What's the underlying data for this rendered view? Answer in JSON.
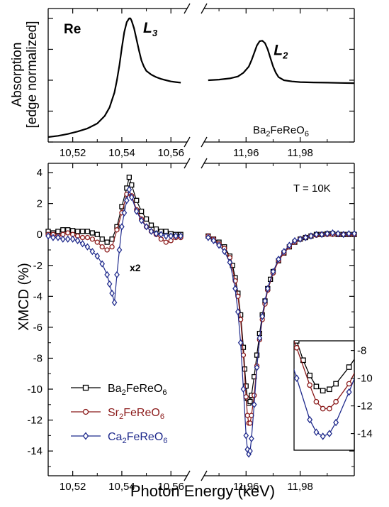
{
  "colors": {
    "ba": "#000000",
    "sr": "#8b1a1a",
    "ca": "#1f2a8c",
    "axis": "#000000"
  },
  "chart_data": [
    {
      "id": "absorption",
      "type": "line",
      "title": "",
      "ylabel_lines": [
        "Absorption",
        "[edge normalized]"
      ],
      "xlabel": "",
      "element_label": "Re",
      "edge_labels": [
        {
          "text": "L",
          "sub": "3",
          "x": 10.5435,
          "y": 1.0
        },
        {
          "text": "L",
          "sub": "2",
          "x": 11.9655,
          "y": 0.82
        }
      ],
      "sample_label": {
        "text": "Ba",
        "sub1": "2",
        "mid": "FeReO",
        "sub2": "6"
      },
      "axis_break": true,
      "x_segments": [
        {
          "xlim": [
            10.51,
            10.566
          ],
          "ticks": [
            10.52,
            10.54,
            10.56
          ],
          "tick_labels": [
            "10,52",
            "10,54",
            "10,56"
          ]
        },
        {
          "xlim": [
            11.945,
            12.0
          ],
          "ticks": [
            11.96,
            11.98
          ],
          "tick_labels": [
            "11,96",
            "11,98"
          ]
        }
      ],
      "ylim": [
        0.0,
        1.08
      ],
      "series": [
        {
          "segment": 0,
          "x": [
            10.51,
            10.514,
            10.518,
            10.522,
            10.526,
            10.53,
            10.533,
            10.535,
            10.537,
            10.538,
            10.539,
            10.54,
            10.541,
            10.542,
            10.543,
            10.5435,
            10.544,
            10.545,
            10.546,
            10.547,
            10.548,
            10.549,
            10.55,
            10.552,
            10.554,
            10.556,
            10.558,
            10.56,
            10.562,
            10.564
          ],
          "y": [
            0.04,
            0.05,
            0.065,
            0.085,
            0.11,
            0.15,
            0.21,
            0.28,
            0.4,
            0.5,
            0.62,
            0.76,
            0.89,
            0.97,
            1.0,
            1.0,
            0.98,
            0.92,
            0.83,
            0.74,
            0.66,
            0.61,
            0.575,
            0.545,
            0.525,
            0.51,
            0.5,
            0.49,
            0.485,
            0.48
          ]
        },
        {
          "segment": 1,
          "x": [
            11.946,
            11.95,
            11.954,
            11.957,
            11.959,
            11.961,
            11.962,
            11.963,
            11.964,
            11.965,
            11.966,
            11.967,
            11.968,
            11.969,
            11.97,
            11.971,
            11.972,
            11.974,
            11.977,
            11.98,
            11.985,
            11.99,
            11.995,
            12.0
          ],
          "y": [
            0.5,
            0.505,
            0.515,
            0.53,
            0.56,
            0.61,
            0.66,
            0.72,
            0.78,
            0.815,
            0.82,
            0.8,
            0.75,
            0.68,
            0.61,
            0.56,
            0.525,
            0.5,
            0.49,
            0.485,
            0.482,
            0.48,
            0.478,
            0.476
          ]
        }
      ]
    },
    {
      "id": "xmcd",
      "type": "line",
      "title": "",
      "ylabel": "XMCD  (%)",
      "xlabel": "Photon Energy  (keV)",
      "temperature_label": "T = 10K",
      "scale_annotation": "x2",
      "axis_break": true,
      "x_segments": [
        {
          "xlim": [
            10.51,
            10.566
          ],
          "ticks": [
            10.52,
            10.54,
            10.56
          ],
          "tick_labels": [
            "10,52",
            "10,54",
            "10,56"
          ]
        },
        {
          "xlim": [
            11.945,
            12.0
          ],
          "ticks": [
            11.96,
            11.98
          ],
          "tick_labels": [
            "11,96",
            "11,98"
          ]
        }
      ],
      "ylim": [
        -15.6,
        4.6
      ],
      "yticks": [
        4,
        2,
        0,
        -2,
        -4,
        -6,
        -8,
        -10,
        -12,
        -14
      ],
      "ytick_labels": [
        "4",
        "2",
        "0",
        "-2",
        "-4",
        "-6",
        "-8",
        "-10",
        "-12",
        "-14"
      ],
      "legend": {
        "placement": "bottom-left",
        "entries": [
          {
            "key": "ba",
            "marker": "square",
            "pre": "Ba",
            "s1": "2",
            "mid": "FeReO",
            "s2": "6"
          },
          {
            "key": "sr",
            "marker": "circle",
            "pre": "Sr",
            "s1": "2",
            "mid": "FeReO",
            "s2": "6"
          },
          {
            "key": "ca",
            "marker": "diamond",
            "pre": "Ca",
            "s1": "2",
            "mid": "FeReO",
            "s2": "6"
          }
        ]
      },
      "series": [
        {
          "key": "ba",
          "marker": "square",
          "segments": [
            {
              "x": [
                10.51,
                10.512,
                10.514,
                10.516,
                10.518,
                10.52,
                10.522,
                10.524,
                10.526,
                10.528,
                10.53,
                10.532,
                10.534,
                10.536,
                10.538,
                10.54,
                10.542,
                10.543,
                10.544,
                10.546,
                10.548,
                10.55,
                10.552,
                10.554,
                10.556,
                10.558,
                10.56,
                10.562,
                10.564
              ],
              "y": [
                0.2,
                0.1,
                0.2,
                0.3,
                0.3,
                0.25,
                0.2,
                0.2,
                0.2,
                0.1,
                0.0,
                -0.3,
                -0.5,
                -0.3,
                0.5,
                1.8,
                3.0,
                3.7,
                3.2,
                2.2,
                1.5,
                1.0,
                0.6,
                0.35,
                0.2,
                0.2,
                0.05,
                0.0,
                0.0
              ]
            },
            {
              "x": [
                11.946,
                11.948,
                11.95,
                11.952,
                11.954,
                11.955,
                11.956,
                11.957,
                11.958,
                11.959,
                11.9595,
                11.96,
                11.9605,
                11.961,
                11.9615,
                11.962,
                11.963,
                11.964,
                11.965,
                11.966,
                11.967,
                11.968,
                11.969,
                11.97,
                11.972,
                11.974,
                11.976,
                11.978,
                11.98,
                11.982,
                11.984,
                11.986,
                11.988,
                11.99,
                11.992,
                11.994,
                11.996,
                11.998,
                12.0
              ],
              "y": [
                -0.1,
                -0.3,
                -0.5,
                -0.8,
                -1.4,
                -2.0,
                -2.8,
                -3.8,
                -5.2,
                -7.3,
                -8.7,
                -9.8,
                -10.6,
                -10.9,
                -10.8,
                -10.4,
                -9.2,
                -7.8,
                -6.4,
                -5.2,
                -4.3,
                -3.5,
                -2.9,
                -2.4,
                -1.7,
                -1.2,
                -0.8,
                -0.5,
                -0.3,
                -0.2,
                -0.1,
                0.0,
                0.0,
                0.05,
                0.05,
                0.0,
                0.0,
                0.0,
                0.0
              ]
            }
          ]
        },
        {
          "key": "sr",
          "marker": "circle",
          "segments": [
            {
              "x": [
                10.51,
                10.512,
                10.514,
                10.516,
                10.518,
                10.52,
                10.522,
                10.524,
                10.526,
                10.528,
                10.53,
                10.532,
                10.534,
                10.536,
                10.538,
                10.54,
                10.542,
                10.544,
                10.546,
                10.548,
                10.55,
                10.552,
                10.554,
                10.556,
                10.558,
                10.56,
                10.562,
                10.564
              ],
              "y": [
                0.0,
                0.0,
                -0.1,
                0.0,
                0.1,
                0.0,
                -0.1,
                -0.2,
                -0.2,
                -0.3,
                -0.5,
                -0.8,
                -1.0,
                -0.8,
                0.3,
                1.4,
                2.6,
                2.5,
                1.6,
                1.0,
                0.5,
                0.2,
                0.0,
                -0.3,
                -0.5,
                -0.4,
                -0.2,
                -0.2
              ]
            },
            {
              "x": [
                11.946,
                11.948,
                11.95,
                11.952,
                11.954,
                11.956,
                11.957,
                11.958,
                11.959,
                11.96,
                11.9605,
                11.961,
                11.9615,
                11.962,
                11.963,
                11.964,
                11.965,
                11.966,
                11.967,
                11.968,
                11.97,
                11.972,
                11.974,
                11.976,
                11.978,
                11.98,
                11.982,
                11.984,
                11.986,
                11.988,
                11.99,
                11.992,
                11.994,
                11.996,
                11.998,
                12.0
              ],
              "y": [
                -0.1,
                -0.3,
                -0.6,
                -0.9,
                -1.5,
                -3.0,
                -4.0,
                -5.5,
                -7.8,
                -10.5,
                -11.7,
                -12.2,
                -12.2,
                -11.7,
                -10.4,
                -8.5,
                -6.8,
                -5.5,
                -4.5,
                -3.6,
                -2.5,
                -1.7,
                -1.2,
                -0.8,
                -0.5,
                -0.3,
                -0.2,
                -0.1,
                -0.05,
                0.0,
                0.0,
                0.0,
                0.0,
                0.0,
                0.0,
                0.0
              ]
            }
          ]
        },
        {
          "key": "ca",
          "marker": "diamond",
          "segments": [
            {
              "x": [
                10.51,
                10.512,
                10.514,
                10.516,
                10.518,
                10.52,
                10.522,
                10.524,
                10.526,
                10.528,
                10.53,
                10.532,
                10.534,
                10.535,
                10.536,
                10.537,
                10.538,
                10.539,
                10.54,
                10.541,
                10.542,
                10.543,
                10.544,
                10.546,
                10.548,
                10.55,
                10.552,
                10.554,
                10.556,
                10.558,
                10.56,
                10.562,
                10.564
              ],
              "y": [
                -0.1,
                -0.2,
                -0.2,
                -0.3,
                -0.3,
                -0.3,
                -0.4,
                -0.6,
                -0.8,
                -1.1,
                -1.4,
                -1.9,
                -2.6,
                -3.2,
                -3.8,
                -4.4,
                -2.6,
                -1.0,
                0.5,
                1.4,
                2.2,
                2.9,
                2.4,
                1.5,
                0.9,
                0.5,
                0.2,
                0.05,
                0.0,
                -0.1,
                -0.1,
                -0.1,
                -0.1
              ]
            },
            {
              "x": [
                11.946,
                11.948,
                11.95,
                11.952,
                11.954,
                11.956,
                11.957,
                11.958,
                11.959,
                11.96,
                11.9605,
                11.961,
                11.9615,
                11.962,
                11.963,
                11.964,
                11.965,
                11.966,
                11.967,
                11.968,
                11.97,
                11.972,
                11.974,
                11.976,
                11.978,
                11.98,
                11.982,
                11.984,
                11.986,
                11.988,
                11.99,
                11.992,
                11.994,
                11.996,
                11.998,
                12.0
              ],
              "y": [
                -0.2,
                -0.4,
                -0.7,
                -1.1,
                -1.8,
                -3.5,
                -5.0,
                -7.0,
                -10.0,
                -13.0,
                -13.9,
                -14.2,
                -14.0,
                -13.2,
                -11.0,
                -8.6,
                -6.7,
                -5.3,
                -4.3,
                -3.5,
                -2.4,
                -1.6,
                -1.1,
                -0.7,
                -0.4,
                -0.3,
                -0.2,
                -0.1,
                0.0,
                0.0,
                0.05,
                0.1,
                0.05,
                0.0,
                0.05,
                0.05
              ]
            }
          ]
        }
      ],
      "inset": {
        "placement": "bottom-right",
        "xlim": [
          11.9588,
          11.9634
        ],
        "ylim": [
          -15.2,
          -7.3
        ],
        "yticks": [
          -8,
          -10,
          -12,
          -14
        ],
        "ytick_labels": [
          "-8",
          "-10",
          "-12",
          "-14"
        ]
      }
    }
  ]
}
